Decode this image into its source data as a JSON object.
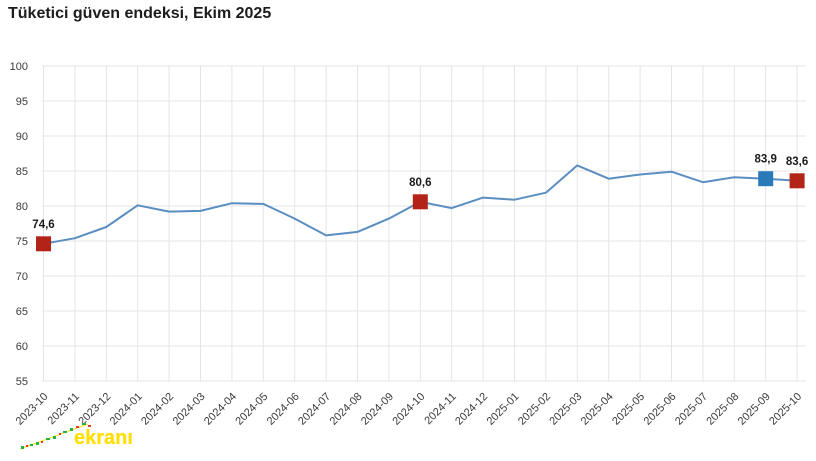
{
  "page": {
    "title": "Tüketici güven endeksi, Ekim 2025"
  },
  "watermark": {
    "text": "ekranı",
    "text_color": "#ffdf00"
  },
  "chart_data": {
    "type": "line",
    "title": "Tüketici güven endeksi, Ekim 2025",
    "xlabel": "",
    "ylabel": "",
    "x": [
      "2023-10",
      "2023-11",
      "2023-12",
      "2024-01",
      "2024-02",
      "2024-03",
      "2024-04",
      "2024-05",
      "2024-06",
      "2024-07",
      "2024-08",
      "2024-09",
      "2024-10",
      "2024-11",
      "2024-12",
      "2025-01",
      "2025-02",
      "2025-03",
      "2025-04",
      "2025-05",
      "2025-06",
      "2025-07",
      "2025-08",
      "2025-09",
      "2025-10"
    ],
    "values": [
      74.6,
      75.4,
      77.0,
      80.1,
      79.2,
      79.3,
      80.4,
      80.3,
      78.2,
      75.8,
      76.3,
      78.2,
      80.6,
      79.7,
      81.2,
      80.9,
      81.9,
      85.8,
      83.9,
      84.5,
      84.9,
      83.4,
      84.1,
      83.9,
      83.6
    ],
    "ylim": [
      55,
      100
    ],
    "yticks": [
      100,
      95,
      90,
      85,
      80,
      75,
      70,
      65,
      60,
      55
    ],
    "grid": true,
    "legend": false,
    "line_color": "#5b8ec0",
    "grid_color": "#e4e4e4",
    "annotated_points": [
      {
        "x": "2023-10",
        "value": 74.6,
        "label": "74,6",
        "marker_color": "#b32318"
      },
      {
        "x": "2024-10",
        "value": 80.6,
        "label": "80,6",
        "marker_color": "#b32318"
      },
      {
        "x": "2025-09",
        "value": 83.9,
        "label": "83,9",
        "marker_color": "#2a7ab9"
      },
      {
        "x": "2025-10",
        "value": 83.6,
        "label": "83,6",
        "marker_color": "#b32318"
      }
    ]
  }
}
